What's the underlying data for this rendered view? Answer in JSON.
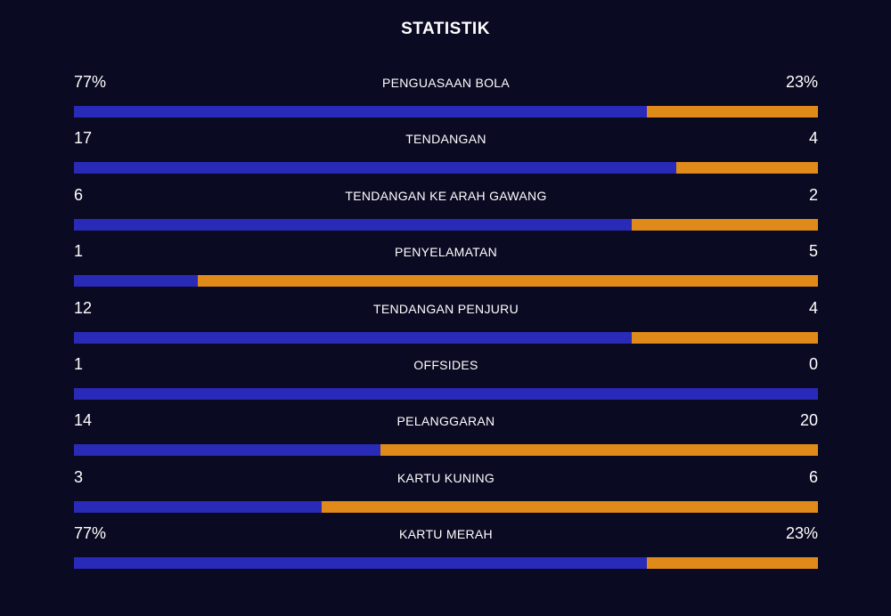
{
  "title": "STATISTIK",
  "colors": {
    "background": "#0a0a22",
    "home": "#2a2ab8",
    "away": "#e08a19"
  },
  "stats": [
    {
      "label": "PENGUASAAN BOLA",
      "home": "77%",
      "away": "23%",
      "home_share": 0.77
    },
    {
      "label": "TENDANGAN",
      "home": "17",
      "away": "4",
      "home_share": 0.81
    },
    {
      "label": "TENDANGAN KE ARAH GAWANG",
      "home": "6",
      "away": "2",
      "home_share": 0.75
    },
    {
      "label": "PENYELAMATAN",
      "home": "1",
      "away": "5",
      "home_share": 0.167
    },
    {
      "label": "TENDANGAN PENJURU",
      "home": "12",
      "away": "4",
      "home_share": 0.75
    },
    {
      "label": "OFFSIDES",
      "home": "1",
      "away": "0",
      "home_share": 1.0
    },
    {
      "label": "PELANGGARAN",
      "home": "14",
      "away": "20",
      "home_share": 0.412
    },
    {
      "label": "KARTU KUNING",
      "home": "3",
      "away": "6",
      "home_share": 0.333
    },
    {
      "label": "KARTU MERAH",
      "home": "77%",
      "away": "23%",
      "home_share": 0.77
    }
  ]
}
